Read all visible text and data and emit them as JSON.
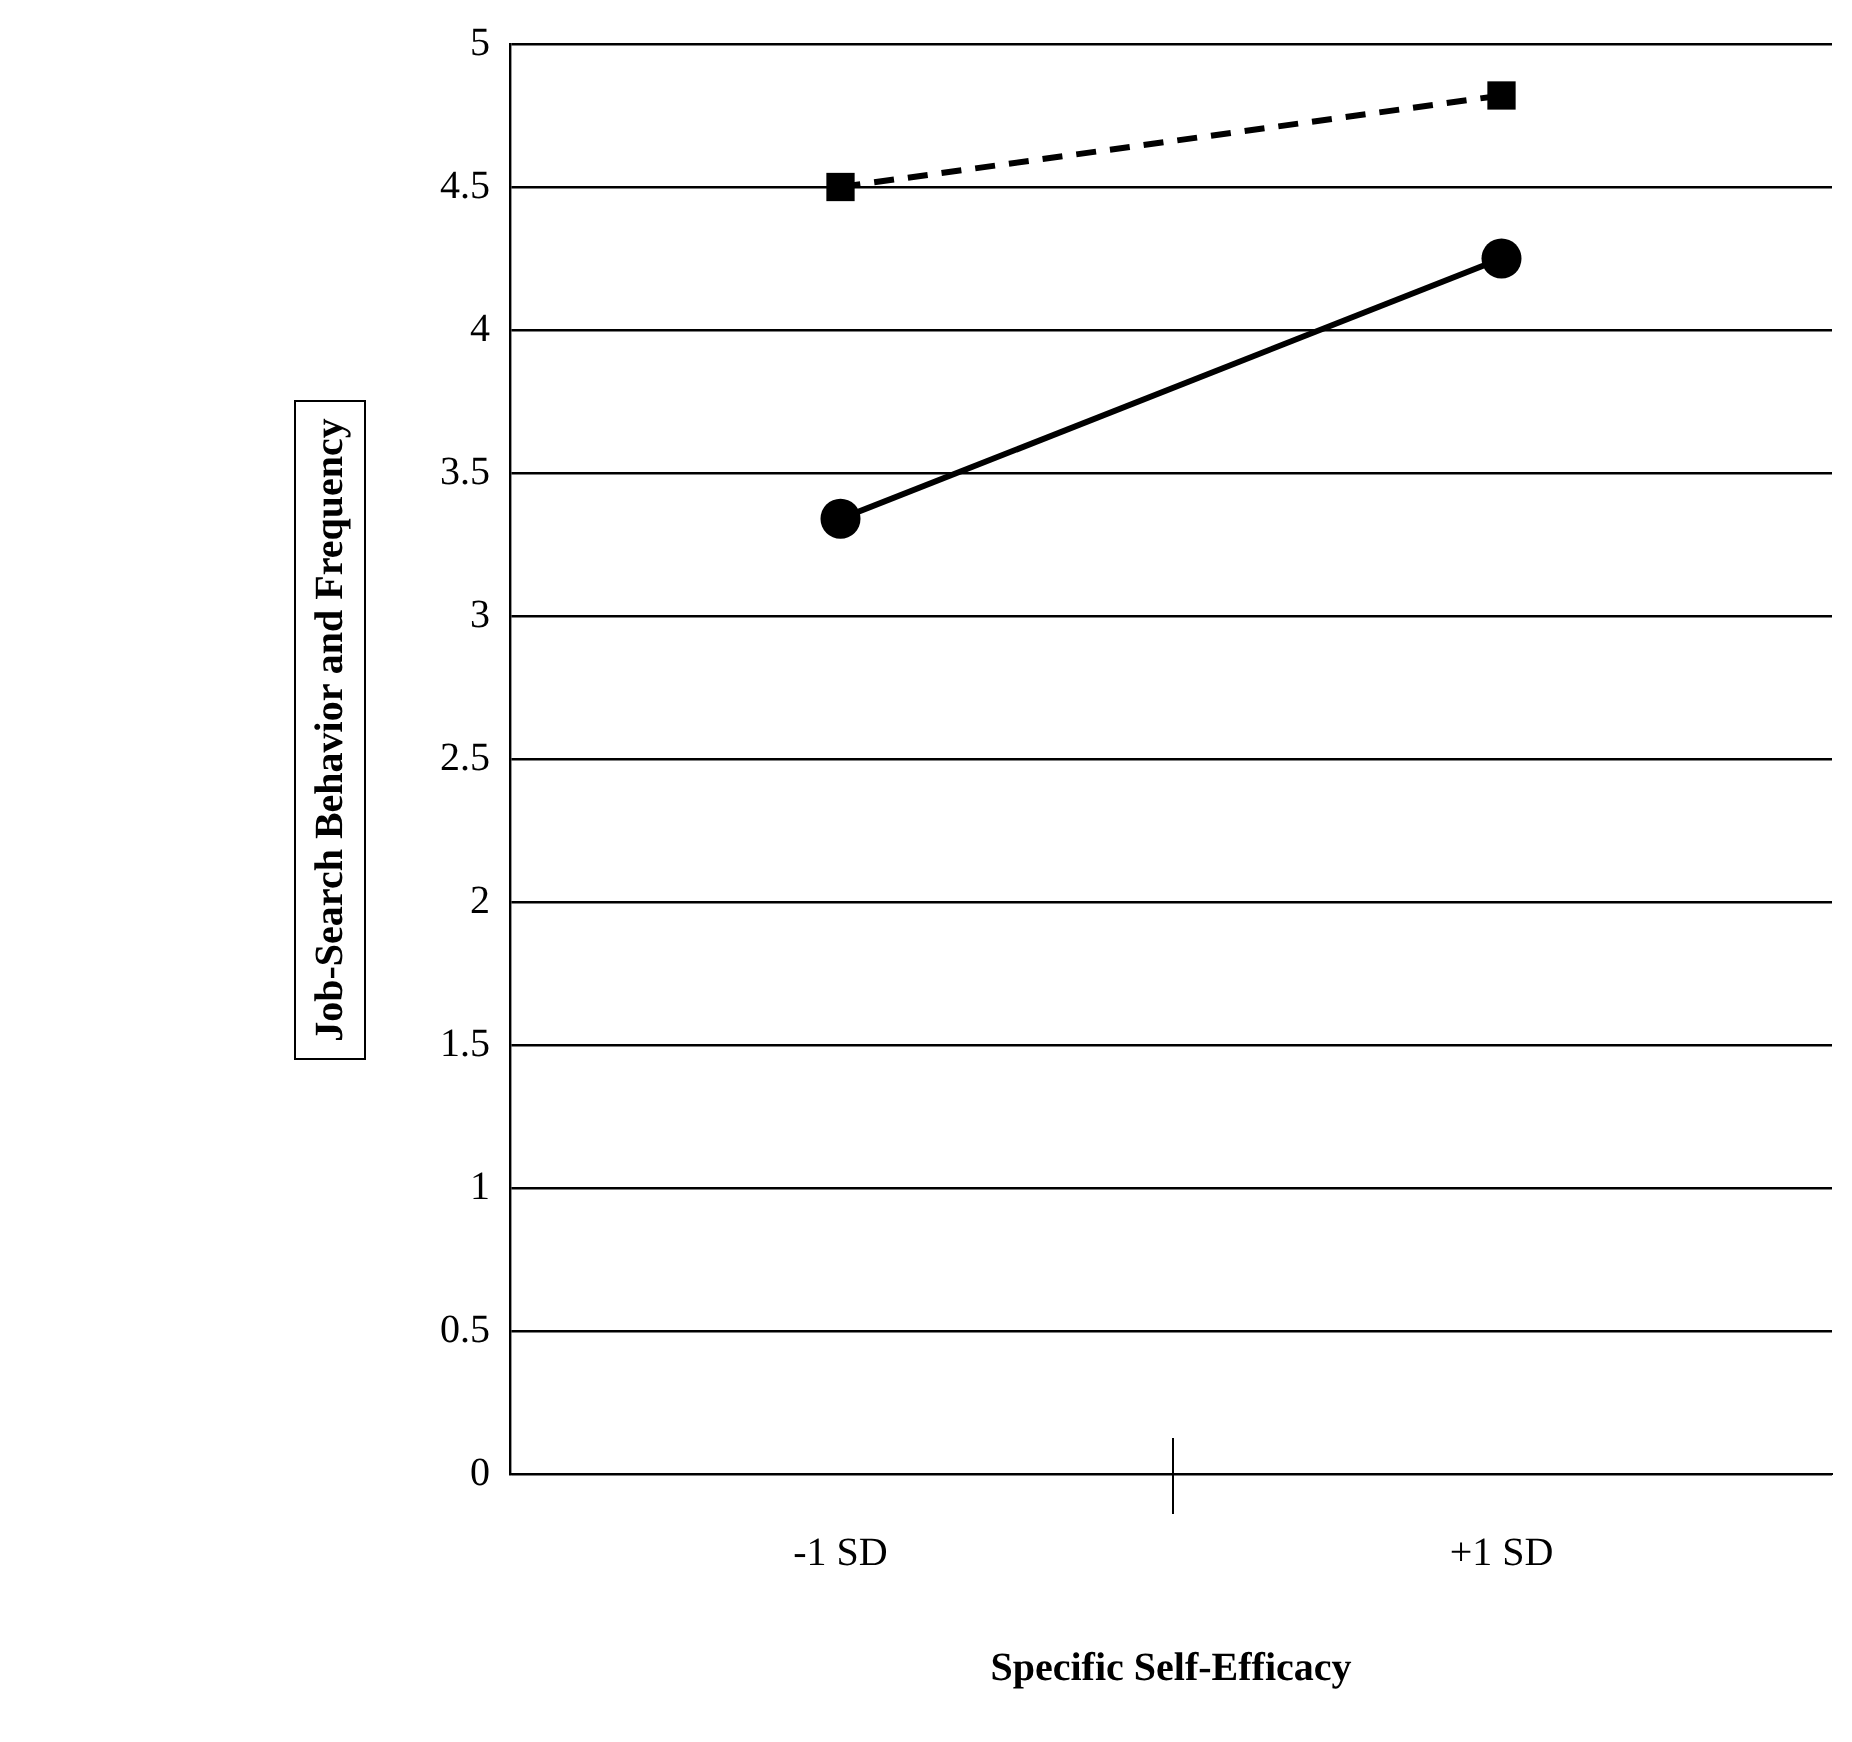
{
  "chart_data": {
    "type": "line",
    "xlabel": "Specific Self-Efficacy",
    "ylabel": "Job-Search Behavior and Frequency",
    "categories": [
      "-1 SD",
      "+1 SD"
    ],
    "series": [
      {
        "color": "#000000",
        "values": [
          4.5,
          4.82
        ],
        "marker": "square",
        "line_style": "dashed"
      },
      {
        "color": "#000000",
        "values": [
          3.34,
          4.25
        ],
        "marker": "circle",
        "line_style": "solid"
      }
    ],
    "ylim": [
      0,
      5
    ],
    "yticks": [
      0,
      0.5,
      1,
      1.5,
      2,
      2.5,
      3,
      3.5,
      4,
      4.5,
      5
    ],
    "grid": "y",
    "legend": false
  }
}
